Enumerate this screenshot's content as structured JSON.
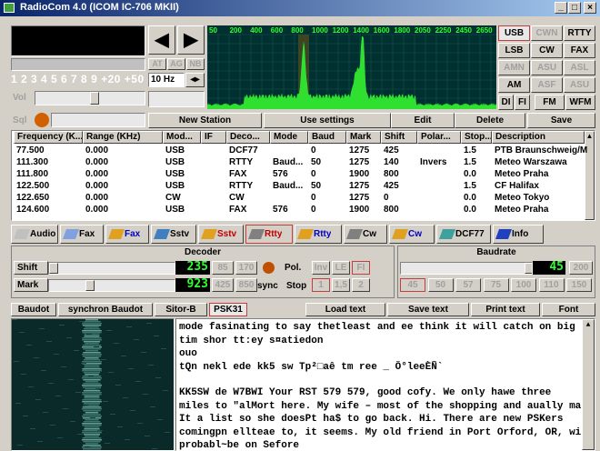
{
  "title": "RadioCom 4.0 (ICOM IC-706 MKII)",
  "display": {
    "smeter_scale": "1 2 3 4 5 6 7 8 9 +20 +50",
    "filters": [
      "AT",
      "AG",
      "NB"
    ],
    "step": "10 Hz",
    "vol": "Vol",
    "sql": "Sql"
  },
  "spectrum_scale": [
    "50",
    "200",
    "400",
    "600",
    "800",
    "1000",
    "1200",
    "1400",
    "1600",
    "1800",
    "2050",
    "2250",
    "2450",
    "2650"
  ],
  "modes": [
    [
      "USB",
      "CWN",
      "RTTY"
    ],
    [
      "LSB",
      "CW",
      "FAX"
    ],
    [
      "AMN",
      "ASU",
      "ASL"
    ],
    [
      "AM",
      "ASF",
      "ASU"
    ],
    [
      "DI",
      "FI",
      "FM",
      "WFM"
    ]
  ],
  "actions": [
    "New Station",
    "Use settings",
    "Edit",
    "Delete",
    "Save"
  ],
  "table": {
    "columns": [
      "Frequency (K...",
      "Range (KHz)",
      "Mod...",
      "IF",
      "Deco...",
      "Mode",
      "Baud",
      "Mark",
      "Shift",
      "Polar...",
      "Stop...",
      "Description"
    ],
    "rows": [
      [
        "77.500",
        "0.000",
        "USB",
        null,
        "DCF77",
        null,
        "0",
        "1275",
        "425",
        null,
        "1.5",
        "PTB Braunschweig/Mf"
      ],
      [
        "111.300",
        "0.000",
        "USB",
        null,
        "RTTY",
        "Baud...",
        "50",
        "1275",
        "140",
        "Invers",
        "1.5",
        "Meteo Warszawa"
      ],
      [
        "111.800",
        "0.000",
        "USB",
        null,
        "FAX",
        "576",
        "0",
        "1900",
        "800",
        null,
        "0.0",
        "Meteo Praha"
      ],
      [
        "122.500",
        "0.000",
        "USB",
        null,
        "RTTY",
        "Baud...",
        "50",
        "1275",
        "425",
        null,
        "1.5",
        "CF Halifax"
      ],
      [
        "122.650",
        "0.000",
        "CW",
        null,
        "CW",
        null,
        "0",
        "1275",
        "0",
        null,
        "0.0",
        "Meteo Tokyo"
      ],
      [
        "124.600",
        "0.000",
        "USB",
        null,
        "FAX",
        "576",
        "0",
        "1900",
        "800",
        null,
        "0.0",
        "Meteo Praha"
      ]
    ]
  },
  "toolbar": [
    "Audio",
    "Fax",
    "Fax",
    "Sstv",
    "Sstv",
    "Rtty",
    "Rtty",
    "Cw",
    "Cw",
    "DCF77",
    "Info"
  ],
  "decoder": {
    "title": "Decoder",
    "shift_label": "Shift",
    "shift_value": "235",
    "shift_buttons": [
      "85",
      "170"
    ],
    "mark_label": "Mark",
    "mark_value": "923",
    "mark_buttons": [
      "425",
      "850"
    ],
    "pol_label": "Pol.",
    "pol_buttons": [
      "Inv",
      "LE",
      "FI"
    ],
    "sync_label": "sync",
    "stop_label": "Stop",
    "stop_buttons": [
      "1",
      "1,5",
      "2"
    ]
  },
  "baudrate": {
    "title": "Baudrate",
    "value": "45",
    "max": "200",
    "buttons": [
      "45",
      "50",
      "57",
      "75",
      "100",
      "110",
      "150"
    ]
  },
  "tabs": [
    "Baudot",
    "synchron Baudot",
    "Sitor-B",
    "PSK31"
  ],
  "text_buttons": [
    "Load text",
    "Save text",
    "Print text",
    "Font"
  ],
  "text_lines": [
    "mode fasinating to say thetleast and ee think it will catch on  big",
    "tim  shor  tt:ey s¤atiedon",
    "ouo",
    " tQn nekl ede kk5 sw Tp²□aê tm ree _ Ô°leeÈÑ`",
    "KK5SW  de  W7BWI  Your RST 579  579, good cofy. We only hawe three",
    "miles to \"alMort here. My wife – most of the shopping and aually makes",
    "It a list so she doesPt ha$ to go back. Hi. There are new PSKers",
    "comingpn ellteae to, it seems. My old friend in Port Orford, OR, will",
    "probabl~be on Sefore"
  ]
}
